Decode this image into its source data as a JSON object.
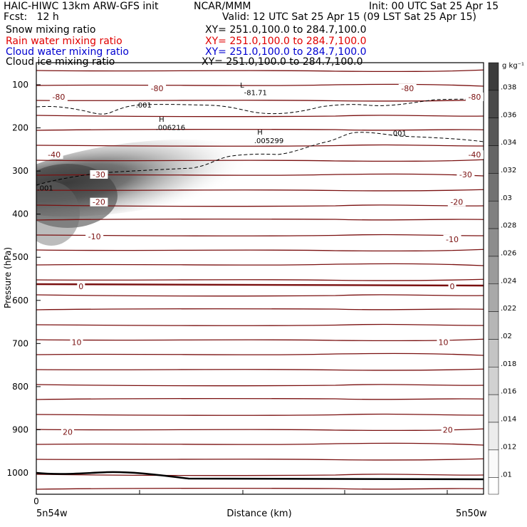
{
  "header": {
    "title_left": "HAIC-HIWC 13km ARW-GFS init",
    "org": "NCAR/MMM",
    "init": "Init: 00 UTC Sat 25 Apr 15",
    "fcst": "Fcst:   12 h",
    "valid": "Valid: 12 UTC Sat 25 Apr 15 (09 LST Sat 25 Apr 15)"
  },
  "fields": [
    {
      "name": "Snow mixing ratio",
      "xy": "XY= 251.0,100.0 to 284.7,100.0",
      "color": "#000000"
    },
    {
      "name": "Rain water mixing ratio",
      "xy": "XY= 251.0,100.0 to 284.7,100.0",
      "color": "#e00000"
    },
    {
      "name": "Cloud water mixing ratio",
      "xy": "XY= 251.0,100.0 to 284.7,100.0",
      "color": "#0000d0"
    },
    {
      "name": "Cloud ice mixing ratio",
      "xy": "XY= 251.0,100.0 to 284.7,100.0",
      "color": "#000000"
    }
  ],
  "chart_data": {
    "type": "heatmap",
    "ylabel": "Pressure (hPa)",
    "xlabel": "Distance (km)",
    "x_left_label": "5n54w",
    "x_right_label": "5n50w",
    "x_tick_label": "0",
    "y_ticks": [
      100,
      200,
      300,
      400,
      500,
      600,
      700,
      800,
      900,
      1000
    ],
    "ylim": [
      40,
      1050
    ],
    "colorbar": {
      "unit": "g kg⁻¹",
      "ticks": [
        ".01",
        ".012",
        ".014",
        ".016",
        ".018",
        ".02",
        ".022",
        ".024",
        ".026",
        ".028",
        ".03",
        ".032",
        ".034",
        ".036",
        ".038"
      ]
    },
    "temperature_labels": [
      {
        "text": "-80",
        "p": 108,
        "x": 0.27
      },
      {
        "text": "-80",
        "p": 128,
        "x": 0.05
      },
      {
        "text": "-80",
        "p": 108,
        "x": 0.83
      },
      {
        "text": "-80",
        "p": 128,
        "x": 0.98
      },
      {
        "text": "-40",
        "p": 262,
        "x": 0.04
      },
      {
        "text": "-40",
        "p": 262,
        "x": 0.98
      },
      {
        "text": "-30",
        "p": 308,
        "x": 0.14
      },
      {
        "text": "-30",
        "p": 308,
        "x": 0.96
      },
      {
        "text": "-20",
        "p": 372,
        "x": 0.14
      },
      {
        "text": "-20",
        "p": 372,
        "x": 0.94
      },
      {
        "text": "-10",
        "p": 452,
        "x": 0.13
      },
      {
        "text": "-10",
        "p": 458,
        "x": 0.93
      },
      {
        "text": "0",
        "p": 567,
        "x": 0.1
      },
      {
        "text": "0",
        "p": 567,
        "x": 0.93
      },
      {
        "text": "10",
        "p": 697,
        "x": 0.09
      },
      {
        "text": "10",
        "p": 697,
        "x": 0.91
      },
      {
        "text": "20",
        "p": 905,
        "x": 0.07
      },
      {
        "text": "20",
        "p": 900,
        "x": 0.92
      }
    ],
    "annotations": [
      {
        "text": "L",
        "p": 107,
        "x": 0.46
      },
      {
        "text": "-81.71",
        "p": 124,
        "x": 0.49
      },
      {
        "text": "H",
        "p": 186,
        "x": 0.28
      },
      {
        "text": ".006216",
        "p": 205,
        "x": 0.3
      },
      {
        "text": "H",
        "p": 216,
        "x": 0.5
      },
      {
        "text": ".005299",
        "p": 235,
        "x": 0.52
      },
      {
        "text": ".001",
        "p": 153,
        "x": 0.24
      },
      {
        "text": ".001",
        "p": 218,
        "x": 0.81
      },
      {
        "text": ".001",
        "p": 345,
        "x": 0.02
      }
    ]
  }
}
